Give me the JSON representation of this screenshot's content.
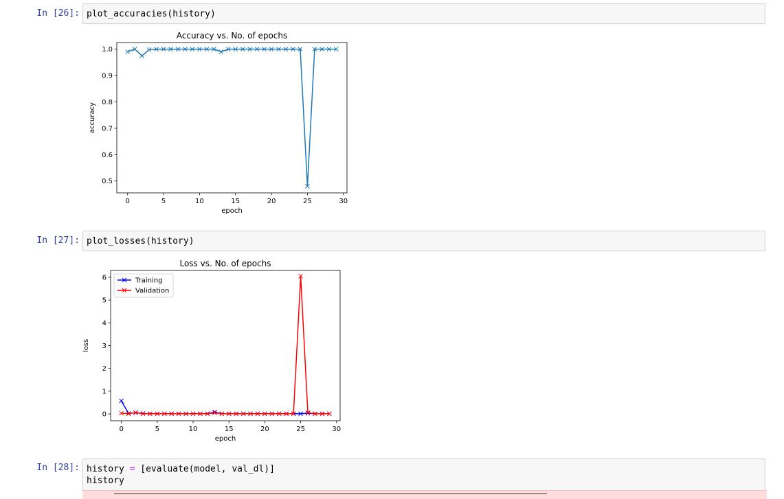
{
  "cells": [
    {
      "prompt": "In [26]:",
      "code": [
        "plot_accuracies(history)"
      ]
    },
    {
      "prompt": "In [27]:",
      "code": [
        "plot_losses(history)"
      ]
    },
    {
      "prompt": "In [28]:",
      "code": [
        "history = [evaluate(model, val_dl)]",
        "history"
      ]
    }
  ],
  "chart_data": [
    {
      "type": "line",
      "title": "Accuracy vs. No. of epochs",
      "xlabel": "epoch",
      "ylabel": "accuracy",
      "xlim": [
        -1.5,
        30.5
      ],
      "ylim": [
        0.455,
        1.025
      ],
      "xticks": [
        0,
        5,
        10,
        15,
        20,
        25,
        30
      ],
      "yticks": [
        0.5,
        0.6,
        0.7,
        0.8,
        0.9,
        1.0
      ],
      "yticklabels": [
        "0.5",
        "0.6",
        "0.7",
        "0.8",
        "0.9",
        "1.0"
      ],
      "grid": false,
      "marker": "x",
      "series": [
        {
          "color": "#1f77b4",
          "x": [
            0,
            1,
            2,
            3,
            4,
            5,
            6,
            7,
            8,
            9,
            10,
            11,
            12,
            13,
            14,
            15,
            16,
            17,
            18,
            19,
            20,
            21,
            22,
            23,
            24,
            25,
            26,
            27,
            28,
            29
          ],
          "y": [
            0.99,
            1.0,
            0.975,
            0.998,
            1.0,
            1.0,
            1.0,
            1.0,
            1.0,
            1.0,
            1.0,
            1.0,
            1.0,
            0.99,
            1.0,
            1.0,
            1.0,
            1.0,
            1.0,
            1.0,
            1.0,
            1.0,
            1.0,
            1.0,
            1.0,
            0.48,
            1.0,
            1.0,
            1.0,
            1.0
          ]
        }
      ]
    },
    {
      "type": "line",
      "title": "Loss vs. No. of epochs",
      "xlabel": "epoch",
      "ylabel": "loss",
      "xlim": [
        -1.5,
        30.5
      ],
      "ylim": [
        -0.3,
        6.3
      ],
      "xticks": [
        0,
        5,
        10,
        15,
        20,
        25,
        30
      ],
      "yticks": [
        0,
        1,
        2,
        3,
        4,
        5,
        6
      ],
      "yticklabels": [
        "0",
        "1",
        "2",
        "3",
        "4",
        "5",
        "6"
      ],
      "grid": false,
      "legend": "upper-left",
      "marker": "x",
      "series": [
        {
          "name": "Training",
          "color": "#0000ff",
          "x": [
            0,
            1,
            2,
            3,
            4,
            5,
            6,
            7,
            8,
            9,
            10,
            11,
            12,
            13,
            14,
            15,
            16,
            17,
            18,
            19,
            20,
            21,
            22,
            23,
            24,
            25,
            26,
            27,
            28,
            29
          ],
          "y": [
            0.57,
            0.02,
            0.05,
            0.02,
            0.01,
            0.01,
            0.01,
            0.01,
            0.01,
            0.01,
            0.01,
            0.01,
            0.01,
            0.08,
            0.01,
            0.01,
            0.01,
            0.01,
            0.01,
            0.01,
            0.01,
            0.01,
            0.01,
            0.01,
            0.01,
            0.01,
            0.03,
            0.01,
            0.01,
            0.01
          ]
        },
        {
          "name": "Validation",
          "color": "#ff0000",
          "x": [
            0,
            1,
            2,
            3,
            4,
            5,
            6,
            7,
            8,
            9,
            10,
            11,
            12,
            13,
            14,
            15,
            16,
            17,
            18,
            19,
            20,
            21,
            22,
            23,
            24,
            25,
            26,
            27,
            28,
            29
          ],
          "y": [
            0.03,
            0.01,
            0.06,
            0.01,
            0.01,
            0.01,
            0.01,
            0.01,
            0.01,
            0.01,
            0.01,
            0.01,
            0.01,
            0.05,
            0.01,
            0.01,
            0.01,
            0.01,
            0.01,
            0.01,
            0.01,
            0.01,
            0.01,
            0.01,
            0.01,
            6.05,
            0.05,
            0.01,
            0.01,
            0.01
          ]
        }
      ]
    }
  ]
}
